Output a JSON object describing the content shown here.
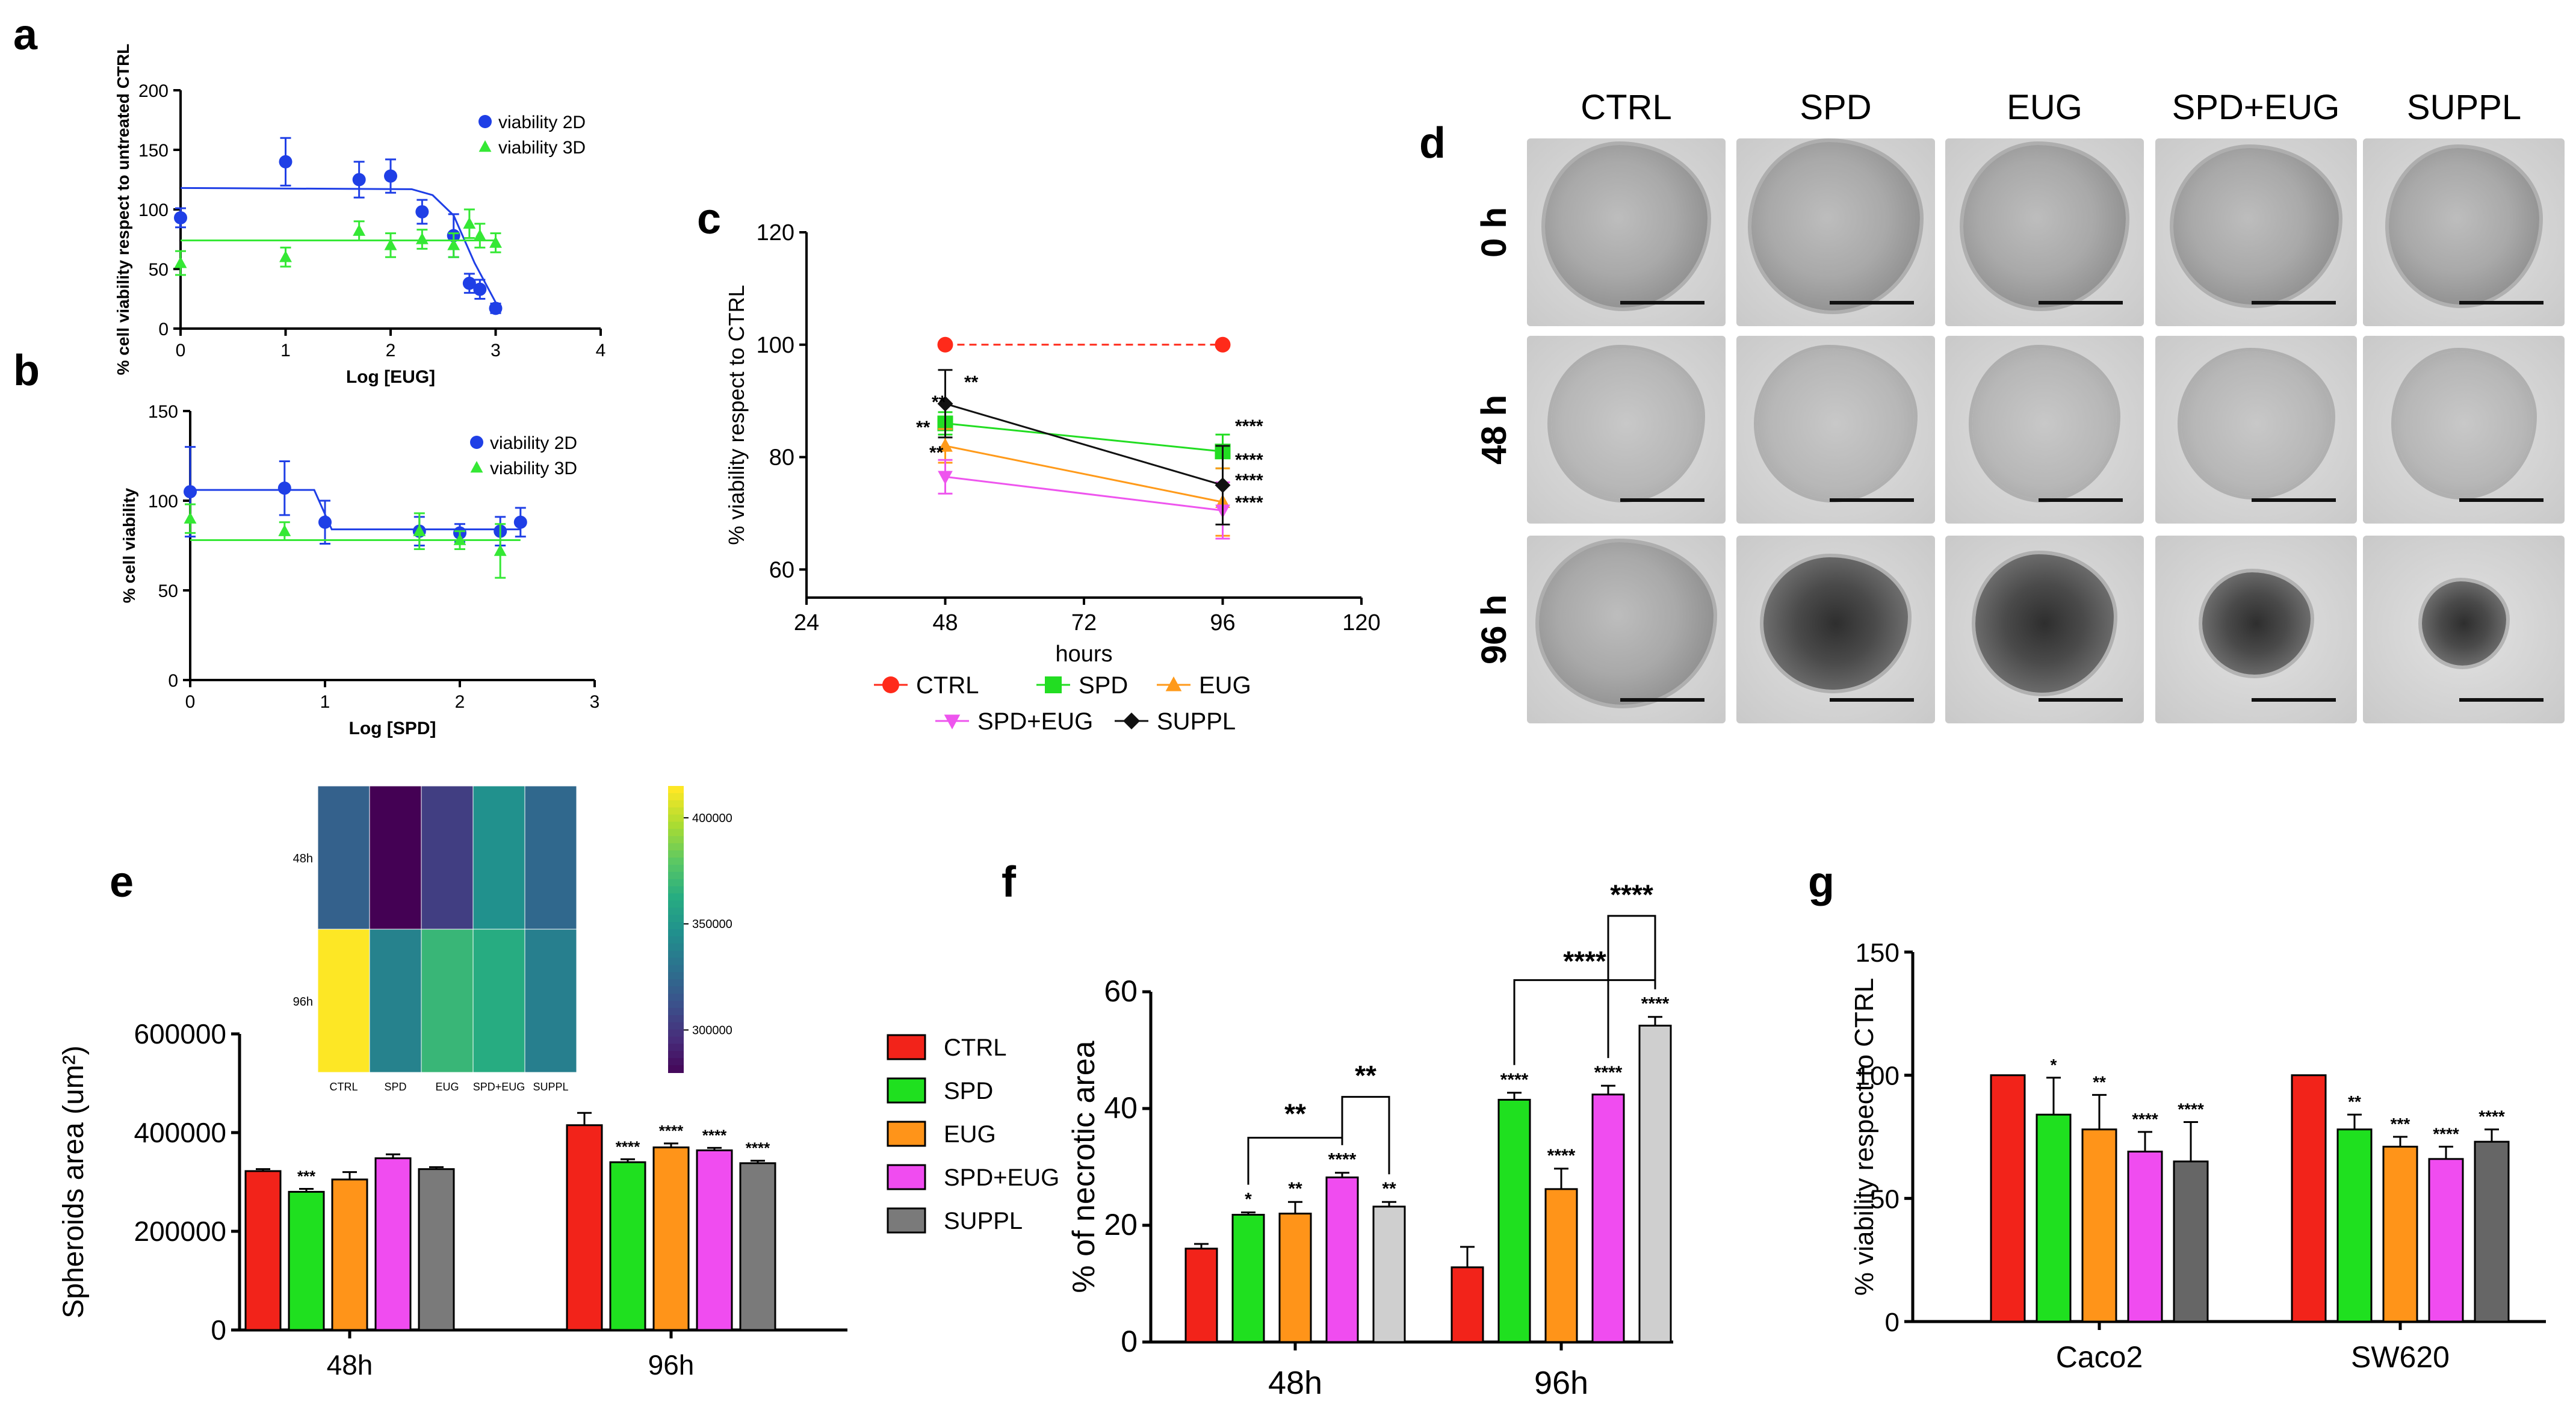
{
  "panel_letters": [
    "a",
    "b",
    "c",
    "d",
    "e",
    "f",
    "g"
  ],
  "colors": {
    "ctrl": "#f2231a",
    "spd": "#1fe01f",
    "eug": "#ff9419",
    "spdeug": "#f04cf0",
    "suppl_e": "#7a7a7a",
    "suppl_f": "#cfcfcf",
    "suppl_g": "#666666",
    "line_blue": "#1f3fe6",
    "line_green": "#35e835",
    "c_ctrl": "#ff2a1a",
    "c_spd": "#22dd22",
    "c_eug": "#ff9a1a",
    "c_spdeug": "#ee55ee",
    "c_suppl": "#111111"
  },
  "photos": {
    "col_labels": [
      "CTRL",
      "SPD",
      "EUG",
      "SPD+EUG",
      "SUPPL"
    ],
    "row_labels": [
      "0 h",
      "48 h",
      "96 h"
    ]
  },
  "chart_data": [
    {
      "panel": "a",
      "type": "scatter",
      "xlabel": "Log [EUG]",
      "ylabel": "% cell viability respect to untreated CTRL",
      "xlim": [
        0,
        4
      ],
      "ylim": [
        0,
        200
      ],
      "xticks": [
        "0",
        "1",
        "2",
        "3",
        "4"
      ],
      "yticks": [
        "0",
        "50",
        "100",
        "150",
        "200"
      ],
      "legend": "top-right",
      "series": [
        {
          "name": "viability 2D",
          "marker": "circle",
          "x": [
            0,
            1,
            1.7,
            2,
            2.3,
            2.6,
            2.75,
            2.85,
            3
          ],
          "y": [
            93,
            140,
            125,
            128,
            98,
            78,
            38,
            33,
            17
          ],
          "err": [
            8,
            20,
            15,
            14,
            10,
            18,
            8,
            8,
            4
          ],
          "fit": [
            [
              0,
              118
            ],
            [
              2.2,
              117
            ],
            [
              2.4,
              112
            ],
            [
              2.6,
              95
            ],
            [
              2.8,
              55
            ],
            [
              3,
              22
            ]
          ]
        },
        {
          "name": "viability 3D",
          "marker": "triangle",
          "x": [
            0,
            1,
            1.7,
            2,
            2.3,
            2.6,
            2.75,
            2.85,
            3
          ],
          "y": [
            55,
            60,
            82,
            70,
            75,
            70,
            88,
            78,
            72
          ],
          "err": [
            10,
            8,
            8,
            10,
            8,
            10,
            12,
            10,
            8
          ],
          "fit": [
            [
              0,
              74
            ],
            [
              3,
              74
            ]
          ]
        }
      ]
    },
    {
      "panel": "b",
      "type": "scatter",
      "xlabel": "Log [SPD]",
      "ylabel": "% cell viability",
      "xlim": [
        0,
        3
      ],
      "ylim": [
        0,
        150
      ],
      "xticks": [
        "0",
        "1",
        "2",
        "3"
      ],
      "yticks": [
        "0",
        "50",
        "100",
        "150"
      ],
      "legend": "top-right",
      "series": [
        {
          "name": "viability 2D",
          "marker": "circle",
          "x": [
            0,
            0.7,
            1,
            1.7,
            2,
            2.3,
            2.45
          ],
          "y": [
            105,
            107,
            88,
            83,
            82,
            83,
            88
          ],
          "err": [
            25,
            15,
            12,
            8,
            5,
            8,
            8
          ],
          "fit": [
            [
              0,
              106
            ],
            [
              0.92,
              106
            ],
            [
              1.05,
              84
            ],
            [
              2.45,
              84
            ]
          ]
        },
        {
          "name": "viability 3D",
          "marker": "triangle",
          "x": [
            0,
            0.7,
            1.7,
            2,
            2.3
          ],
          "y": [
            90,
            83,
            83,
            78,
            72
          ],
          "err": [
            8,
            5,
            10,
            5,
            15
          ],
          "fit": [
            [
              0,
              78
            ],
            [
              2.45,
              78
            ]
          ]
        }
      ]
    },
    {
      "panel": "c",
      "type": "line",
      "xlabel": "hours",
      "ylabel": "% viability respect to CTRL",
      "xlim": [
        24,
        120
      ],
      "ylim": [
        55,
        120
      ],
      "xticks": [
        "24",
        "48",
        "72",
        "96",
        "120"
      ],
      "yticks": [
        "60",
        "80",
        "100",
        "120"
      ],
      "legend": "bottom",
      "series": [
        {
          "name": "CTRL",
          "x": [
            48,
            96
          ],
          "y": [
            100,
            100
          ],
          "err": [
            0,
            0
          ],
          "stars": [
            "",
            ""
          ]
        },
        {
          "name": "SPD",
          "x": [
            48,
            96
          ],
          "y": [
            86,
            81
          ],
          "err": [
            2,
            3
          ],
          "stars": [
            "**",
            "****"
          ]
        },
        {
          "name": "EUG",
          "x": [
            48,
            96
          ],
          "y": [
            82,
            72
          ],
          "err": [
            3,
            6
          ],
          "stars": [
            "**",
            "****"
          ]
        },
        {
          "name": "SPD+EUG",
          "x": [
            48,
            96
          ],
          "y": [
            76.5,
            70.5
          ],
          "err": [
            3,
            5
          ],
          "stars": [
            "**",
            "****"
          ]
        },
        {
          "name": "SUPPL",
          "x": [
            48,
            96
          ],
          "y": [
            89.5,
            75
          ],
          "err": [
            6,
            7
          ],
          "stars": [
            "**",
            "****"
          ]
        }
      ]
    },
    {
      "panel": "e",
      "type": "bar",
      "ylabel": "Spheroids area (um²)",
      "ylim": [
        0,
        600000
      ],
      "yticks": [
        "0",
        "200000",
        "400000",
        "600000"
      ],
      "categories": [
        "48h",
        "96h"
      ],
      "legend": "right",
      "series": [
        {
          "name": "CTRL",
          "values": [
            322000,
            415000
          ],
          "err": [
            4000,
            25000
          ],
          "stars": [
            "",
            ""
          ]
        },
        {
          "name": "SPD",
          "values": [
            280000,
            340000
          ],
          "err": [
            6000,
            6000
          ],
          "stars": [
            "***",
            "****"
          ]
        },
        {
          "name": "EUG",
          "values": [
            305000,
            370000
          ],
          "err": [
            15000,
            8000
          ],
          "stars": [
            "",
            "****"
          ]
        },
        {
          "name": "SPD+EUG",
          "values": [
            348000,
            364000
          ],
          "err": [
            8000,
            5000
          ],
          "stars": [
            "",
            "****"
          ]
        },
        {
          "name": "SUPPL",
          "values": [
            326000,
            338000
          ],
          "err": [
            4000,
            5000
          ],
          "stars": [
            "",
            "****"
          ]
        }
      ]
    },
    {
      "panel": "e-inset",
      "type": "heatmap",
      "rows": [
        "48h",
        "96h"
      ],
      "cols": [
        "CTRL",
        "SPD",
        "EUG",
        "SPD+EUG",
        "SUPPL"
      ],
      "values": [
        [
          322000,
          280000,
          305000,
          348000,
          326000
        ],
        [
          415000,
          340000,
          370000,
          364000,
          338000
        ]
      ],
      "colorbar_ticks": [
        "400000",
        "350000",
        "300000"
      ],
      "colorbar_range": [
        280000,
        415000
      ]
    },
    {
      "panel": "f",
      "type": "bar",
      "ylabel": "% of necrotic area",
      "ylim": [
        0,
        60
      ],
      "yticks": [
        "0",
        "20",
        "40",
        "60"
      ],
      "categories": [
        "48h",
        "96h"
      ],
      "series": [
        {
          "name": "CTRL",
          "values": [
            16,
            12.8
          ],
          "err": [
            0.8,
            3.5
          ],
          "stars": [
            "",
            ""
          ]
        },
        {
          "name": "SPD",
          "values": [
            21.8,
            41.5
          ],
          "err": [
            0.4,
            1.2
          ],
          "stars": [
            "*",
            "****"
          ]
        },
        {
          "name": "EUG",
          "values": [
            22,
            26.2
          ],
          "err": [
            2,
            3.5
          ],
          "stars": [
            "**",
            "****"
          ]
        },
        {
          "name": "SPD+EUG",
          "values": [
            28.2,
            42.4
          ],
          "err": [
            0.8,
            1.5
          ],
          "stars": [
            "****",
            "****"
          ]
        },
        {
          "name": "SUPPL",
          "values": [
            23.2,
            54.2
          ],
          "err": [
            0.8,
            1.5
          ],
          "stars": [
            "**",
            "****"
          ]
        }
      ],
      "brackets": [
        {
          "label": "**",
          "group": 0,
          "from": 1,
          "to": 3,
          "yline": 35,
          "ytext": 37.5
        },
        {
          "label": "**",
          "group": 0,
          "from": 3,
          "to": 4,
          "yline": 42,
          "ytext": 44
        },
        {
          "label": "****",
          "group": 1,
          "from": 1,
          "to": 4,
          "yline": 62,
          "ytext": 63.6
        },
        {
          "label": "****",
          "group": 1,
          "from": 3,
          "to": 4,
          "yline": 73,
          "ytext": 75
        }
      ]
    },
    {
      "panel": "g",
      "type": "bar",
      "ylabel": "% viability respect to CTRL",
      "ylim": [
        0,
        150
      ],
      "yticks": [
        "0",
        "50",
        "100",
        "150"
      ],
      "categories": [
        "Caco2",
        "SW620"
      ],
      "series": [
        {
          "name": "CTRL",
          "values": [
            100,
            100
          ],
          "err": [
            0,
            0
          ],
          "stars": [
            "",
            ""
          ]
        },
        {
          "name": "SPD",
          "values": [
            84,
            78
          ],
          "err": [
            15,
            6
          ],
          "stars": [
            "*",
            "**"
          ]
        },
        {
          "name": "EUG",
          "values": [
            78,
            71
          ],
          "err": [
            14,
            4
          ],
          "stars": [
            "**",
            "***"
          ]
        },
        {
          "name": "SPD+EUG",
          "values": [
            69,
            66
          ],
          "err": [
            8,
            5
          ],
          "stars": [
            "****",
            "****"
          ]
        },
        {
          "name": "SUPPL",
          "values": [
            65,
            73
          ],
          "err": [
            16,
            5
          ],
          "stars": [
            "****",
            "****"
          ]
        }
      ]
    }
  ]
}
